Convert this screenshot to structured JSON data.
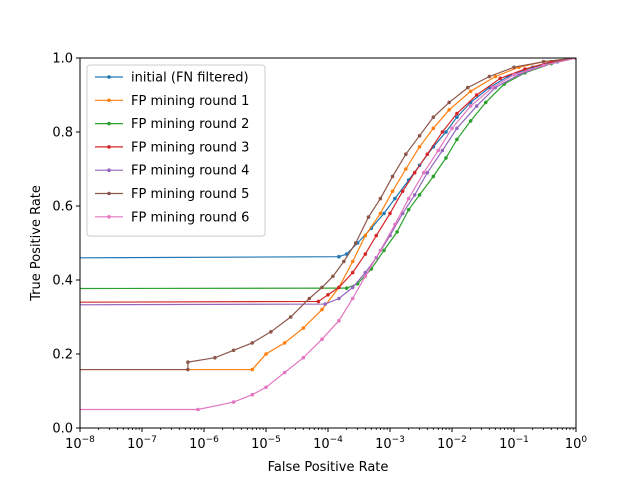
{
  "chart_data": {
    "type": "line",
    "title": "",
    "xlabel": "False Positive Rate",
    "ylabel": "True Positive Rate",
    "xscale": "log",
    "xlim": [
      1e-08,
      1
    ],
    "ylim": [
      0,
      1
    ],
    "grid": false,
    "legend_position": "top-left",
    "x_ticks": [
      {
        "value": 1e-08,
        "base": "10",
        "exp": "−8"
      },
      {
        "value": 1e-07,
        "base": "10",
        "exp": "−7"
      },
      {
        "value": 1e-06,
        "base": "10",
        "exp": "−6"
      },
      {
        "value": 1e-05,
        "base": "10",
        "exp": "−5"
      },
      {
        "value": 0.0001,
        "base": "10",
        "exp": "−4"
      },
      {
        "value": 0.001,
        "base": "10",
        "exp": "−3"
      },
      {
        "value": 0.01,
        "base": "10",
        "exp": "−2"
      },
      {
        "value": 0.1,
        "base": "10",
        "exp": "−1"
      },
      {
        "value": 1,
        "base": "10",
        "exp": "0"
      }
    ],
    "y_ticks": [
      "0.0",
      "0.2",
      "0.4",
      "0.6",
      "0.8",
      "1.0"
    ],
    "series": [
      {
        "name": "initial (FN filtered)",
        "color": "#1f77b4",
        "points": [
          [
            1e-08,
            0.46
          ],
          [
            0.00015,
            0.463
          ],
          [
            0.0002,
            0.47
          ],
          [
            0.0003,
            0.5
          ],
          [
            0.0005,
            0.54
          ],
          [
            0.0008,
            0.58
          ],
          [
            0.0012,
            0.62
          ],
          [
            0.002,
            0.67
          ],
          [
            0.003,
            0.71
          ],
          [
            0.005,
            0.76
          ],
          [
            0.008,
            0.8
          ],
          [
            0.012,
            0.84
          ],
          [
            0.02,
            0.88
          ],
          [
            0.04,
            0.92
          ],
          [
            0.08,
            0.95
          ],
          [
            0.2,
            0.975
          ],
          [
            0.5,
            0.99
          ],
          [
            1,
            1.0
          ]
        ]
      },
      {
        "name": "FP mining round 1",
        "color": "#ff7f0e",
        "points": [
          [
            1e-08,
            0.158
          ],
          [
            6e-06,
            0.158
          ],
          [
            1e-05,
            0.2
          ],
          [
            2e-05,
            0.23
          ],
          [
            4e-05,
            0.27
          ],
          [
            8e-05,
            0.32
          ],
          [
            0.00015,
            0.38
          ],
          [
            0.00025,
            0.45
          ],
          [
            0.0004,
            0.52
          ],
          [
            0.0007,
            0.58
          ],
          [
            0.0011,
            0.64
          ],
          [
            0.0018,
            0.7
          ],
          [
            0.003,
            0.76
          ],
          [
            0.005,
            0.81
          ],
          [
            0.009,
            0.86
          ],
          [
            0.02,
            0.91
          ],
          [
            0.05,
            0.95
          ],
          [
            0.12,
            0.975
          ],
          [
            0.3,
            0.99
          ],
          [
            1,
            1.0
          ]
        ]
      },
      {
        "name": "FP mining round 2",
        "color": "#2ca02c",
        "points": [
          [
            1e-08,
            0.377
          ],
          [
            0.0002,
            0.378
          ],
          [
            0.0003,
            0.39
          ],
          [
            0.0005,
            0.43
          ],
          [
            0.0008,
            0.48
          ],
          [
            0.0013,
            0.53
          ],
          [
            0.002,
            0.59
          ],
          [
            0.003,
            0.63
          ],
          [
            0.005,
            0.68
          ],
          [
            0.008,
            0.73
          ],
          [
            0.012,
            0.78
          ],
          [
            0.02,
            0.83
          ],
          [
            0.035,
            0.88
          ],
          [
            0.07,
            0.93
          ],
          [
            0.15,
            0.96
          ],
          [
            0.4,
            0.985
          ],
          [
            1,
            1.0
          ]
        ]
      },
      {
        "name": "FP mining round 3",
        "color": "#d62728",
        "points": [
          [
            1e-08,
            0.34
          ],
          [
            7e-05,
            0.342
          ],
          [
            0.0001,
            0.36
          ],
          [
            0.00015,
            0.38
          ],
          [
            0.00025,
            0.42
          ],
          [
            0.0004,
            0.47
          ],
          [
            0.0006,
            0.52
          ],
          [
            0.001,
            0.58
          ],
          [
            0.0016,
            0.64
          ],
          [
            0.0025,
            0.69
          ],
          [
            0.004,
            0.74
          ],
          [
            0.007,
            0.8
          ],
          [
            0.012,
            0.85
          ],
          [
            0.025,
            0.9
          ],
          [
            0.06,
            0.945
          ],
          [
            0.15,
            0.97
          ],
          [
            0.4,
            0.99
          ],
          [
            1,
            1.0
          ]
        ]
      },
      {
        "name": "FP mining round 4",
        "color": "#9467bd",
        "points": [
          [
            1e-08,
            0.333
          ],
          [
            9e-05,
            0.335
          ],
          [
            0.00015,
            0.35
          ],
          [
            0.00025,
            0.38
          ],
          [
            0.0004,
            0.42
          ],
          [
            0.0006,
            0.46
          ],
          [
            0.001,
            0.52
          ],
          [
            0.0016,
            0.58
          ],
          [
            0.0025,
            0.63
          ],
          [
            0.004,
            0.69
          ],
          [
            0.007,
            0.75
          ],
          [
            0.012,
            0.81
          ],
          [
            0.025,
            0.87
          ],
          [
            0.05,
            0.92
          ],
          [
            0.12,
            0.955
          ],
          [
            0.3,
            0.98
          ],
          [
            1,
            1.0
          ]
        ]
      },
      {
        "name": "FP mining round 5",
        "color": "#8c564b",
        "points": [
          [
            1e-08,
            0.158
          ],
          [
            5.5e-07,
            0.158
          ],
          [
            5.5e-07,
            0.178
          ],
          [
            1.5e-06,
            0.19
          ],
          [
            3e-06,
            0.21
          ],
          [
            6e-06,
            0.23
          ],
          [
            1.2e-05,
            0.26
          ],
          [
            2.5e-05,
            0.3
          ],
          [
            5e-05,
            0.35
          ],
          [
            8e-05,
            0.38
          ],
          [
            0.00012,
            0.41
          ],
          [
            0.00018,
            0.45
          ],
          [
            0.00028,
            0.5
          ],
          [
            0.00045,
            0.57
          ],
          [
            0.0007,
            0.62
          ],
          [
            0.0011,
            0.68
          ],
          [
            0.0018,
            0.74
          ],
          [
            0.003,
            0.79
          ],
          [
            0.005,
            0.84
          ],
          [
            0.009,
            0.88
          ],
          [
            0.018,
            0.92
          ],
          [
            0.04,
            0.95
          ],
          [
            0.1,
            0.975
          ],
          [
            0.3,
            0.99
          ],
          [
            1,
            1.0
          ]
        ]
      },
      {
        "name": "FP mining round 6",
        "color": "#e377c2",
        "points": [
          [
            1e-08,
            0.05
          ],
          [
            8e-07,
            0.05
          ],
          [
            3e-06,
            0.07
          ],
          [
            6e-06,
            0.09
          ],
          [
            1e-05,
            0.11
          ],
          [
            2e-05,
            0.15
          ],
          [
            4e-05,
            0.19
          ],
          [
            8e-05,
            0.24
          ],
          [
            0.00015,
            0.29
          ],
          [
            0.00025,
            0.35
          ],
          [
            0.0004,
            0.41
          ],
          [
            0.0007,
            0.48
          ],
          [
            0.0012,
            0.55
          ],
          [
            0.002,
            0.62
          ],
          [
            0.0035,
            0.69
          ],
          [
            0.006,
            0.75
          ],
          [
            0.01,
            0.81
          ],
          [
            0.02,
            0.87
          ],
          [
            0.045,
            0.92
          ],
          [
            0.1,
            0.955
          ],
          [
            0.3,
            0.98
          ],
          [
            1,
            1.0
          ]
        ]
      }
    ]
  }
}
